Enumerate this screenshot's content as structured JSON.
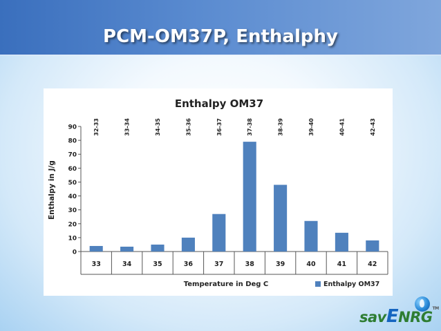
{
  "slide": {
    "title": "PCM-OM37P, Enthalphy"
  },
  "logo": {
    "text_start": "sav",
    "text_mid": "E",
    "text_end": "NRG",
    "tm": "TM"
  },
  "chart_data": {
    "type": "bar",
    "title": "Enthalpy OM37",
    "xlabel": "Temperature in Deg C",
    "ylabel": "Enthalpy in J/g",
    "categories": [
      "33",
      "34",
      "35",
      "36",
      "37",
      "38",
      "39",
      "40",
      "41",
      "42"
    ],
    "range_labels": [
      "32-33",
      "33-34",
      "34-35",
      "35-36",
      "36-37",
      "37-38",
      "38-39",
      "39-40",
      "40-41",
      "42-43"
    ],
    "series": [
      {
        "name": "Enthalpy OM37",
        "values": [
          4,
          3.5,
          5,
          10,
          27,
          79,
          48,
          22,
          13.5,
          8
        ]
      }
    ],
    "ylim": [
      0,
      90
    ],
    "yticks": [
      "0",
      "10",
      "20",
      "30",
      "40",
      "50",
      "60",
      "70",
      "80",
      "90"
    ],
    "grid": false,
    "legend_position": "bottom-right",
    "bar_color": "#4f81bd"
  }
}
